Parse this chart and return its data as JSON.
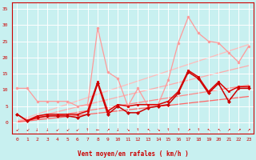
{
  "xlabel": "Vent moyen/en rafales ( km/h )",
  "background_color": "#c8f0f0",
  "grid_color": "#ffffff",
  "x_ticks": [
    0,
    1,
    2,
    3,
    4,
    5,
    6,
    7,
    8,
    9,
    10,
    11,
    12,
    13,
    14,
    15,
    16,
    17,
    18,
    19,
    20,
    21,
    22,
    23
  ],
  "y_ticks": [
    0,
    5,
    10,
    15,
    20,
    25,
    30,
    35
  ],
  "ylim": [
    -3.5,
    37
  ],
  "xlim": [
    -0.5,
    23.5
  ],
  "wind_arrows": [
    "↙",
    "↙",
    "↓",
    "↓",
    "↙",
    "↙",
    "↙",
    "↑",
    "←",
    "↗",
    "↓",
    "↘",
    "↑",
    "↖",
    "↘",
    "↑",
    "↑",
    "↗",
    "↑",
    "↖",
    "↖",
    "↗",
    "↗",
    "↗"
  ],
  "series": [
    {
      "note": "straight trend line 1 - lightest pink, top",
      "x": [
        0,
        23
      ],
      "y": [
        0.5,
        24.0
      ],
      "color": "#ffbbbb",
      "linewidth": 0.9,
      "linestyle": "-",
      "zorder": 1
    },
    {
      "note": "straight trend line 2 - light pink",
      "x": [
        0,
        23
      ],
      "y": [
        0.3,
        17.5
      ],
      "color": "#ffaaaa",
      "linewidth": 0.9,
      "linestyle": "-",
      "zorder": 1
    },
    {
      "note": "straight trend line 3 - medium pink",
      "x": [
        0,
        23
      ],
      "y": [
        0.2,
        11.5
      ],
      "color": "#ff8888",
      "linewidth": 0.9,
      "linestyle": "-",
      "zorder": 1
    },
    {
      "note": "straight trend line 4 - salmon",
      "x": [
        0,
        23
      ],
      "y": [
        0.1,
        8.0
      ],
      "color": "#ff6666",
      "linewidth": 0.9,
      "linestyle": "-",
      "zorder": 1
    },
    {
      "note": "jagged light pink line with dots - gust max",
      "x": [
        0,
        1,
        2,
        3,
        4,
        5,
        6,
        7,
        8,
        9,
        10,
        11,
        12,
        13,
        14,
        15,
        16,
        17,
        18,
        19,
        20,
        21,
        22,
        23
      ],
      "y": [
        10.5,
        10.5,
        6.5,
        6.5,
        6.5,
        6.5,
        5.0,
        5.5,
        29.0,
        15.5,
        13.5,
        5.0,
        10.5,
        5.0,
        5.5,
        13.0,
        24.5,
        32.5,
        27.5,
        25.0,
        24.5,
        21.5,
        18.5,
        23.5
      ],
      "color": "#ff9999",
      "linewidth": 0.9,
      "marker": "o",
      "markersize": 2.0,
      "zorder": 3
    },
    {
      "note": "dark red jagged line 1 - mean wind with diamonds",
      "x": [
        0,
        1,
        2,
        3,
        4,
        5,
        6,
        7,
        8,
        9,
        10,
        11,
        12,
        13,
        14,
        15,
        16,
        17,
        18,
        19,
        20,
        21,
        22,
        23
      ],
      "y": [
        2.5,
        0.5,
        1.5,
        2.0,
        2.0,
        2.0,
        1.5,
        2.5,
        12.0,
        2.5,
        5.0,
        3.0,
        3.0,
        4.5,
        5.0,
        5.5,
        9.0,
        15.5,
        13.5,
        9.0,
        12.0,
        6.5,
        10.5,
        10.5
      ],
      "color": "#cc0000",
      "linewidth": 1.1,
      "marker": "D",
      "markersize": 2.0,
      "zorder": 5
    },
    {
      "note": "dark red jagged line 2 - slightly above line 1",
      "x": [
        0,
        1,
        2,
        3,
        4,
        5,
        6,
        7,
        8,
        9,
        10,
        11,
        12,
        13,
        14,
        15,
        16,
        17,
        18,
        19,
        20,
        21,
        22,
        23
      ],
      "y": [
        2.5,
        0.5,
        2.0,
        2.5,
        2.5,
        2.5,
        2.5,
        3.5,
        12.5,
        3.5,
        5.5,
        5.0,
        5.5,
        5.5,
        5.5,
        6.5,
        9.5,
        16.0,
        14.0,
        9.5,
        12.5,
        9.5,
        11.0,
        11.0
      ],
      "color": "#dd0000",
      "linewidth": 1.1,
      "marker": "s",
      "markersize": 1.8,
      "zorder": 4
    }
  ]
}
